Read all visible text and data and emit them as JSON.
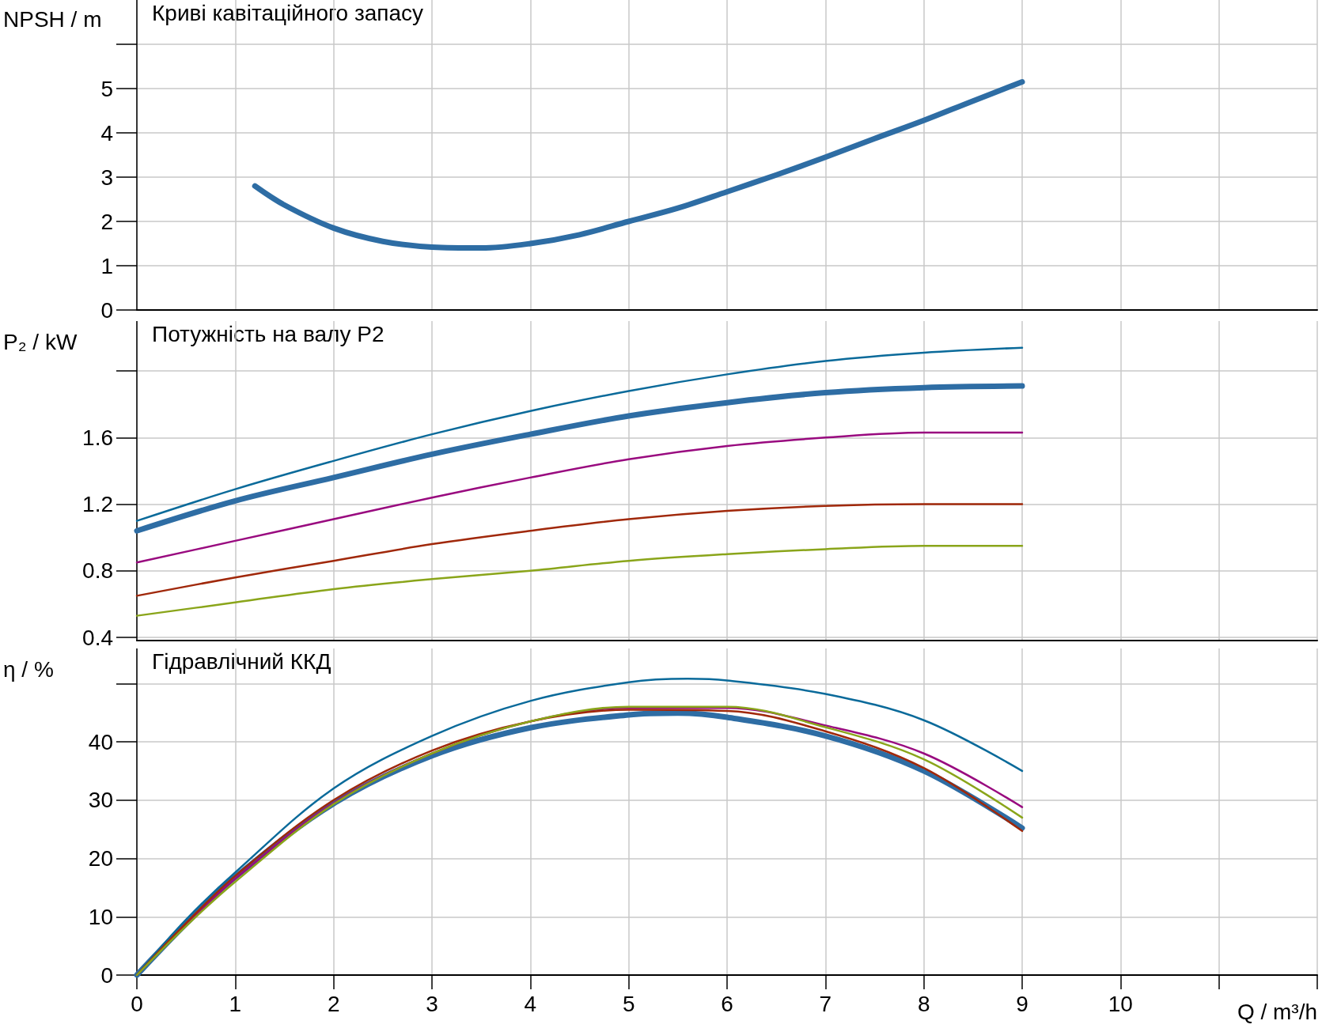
{
  "chart_data": [
    {
      "type": "line",
      "title": "Криві кавітаційного запасу",
      "ylabel": "NPSH / m",
      "xlim": [
        0,
        12
      ],
      "xticks": [
        0,
        1,
        2,
        3,
        4,
        5,
        6,
        7,
        8,
        9,
        10,
        11,
        12
      ],
      "ylim": [
        0,
        7
      ],
      "yticks": [
        0,
        1,
        2,
        3,
        4,
        5,
        {
          "value": 6,
          "label": null
        }
      ],
      "grid": true,
      "tick_labels": "y",
      "series": [
        {
          "color": "#2e6da4",
          "x": [
            1.2,
            1.5,
            2,
            2.5,
            3,
            3.5,
            4,
            4.5,
            5,
            5.5,
            6,
            6.5,
            7,
            7.5,
            8,
            8.5,
            9
          ],
          "values": [
            2.8,
            2.37,
            1.85,
            1.55,
            1.42,
            1.4,
            1.5,
            1.7,
            2.0,
            2.3,
            2.67,
            3.05,
            3.45,
            3.87,
            4.28,
            4.72,
            5.15
          ]
        }
      ]
    },
    {
      "type": "line",
      "title": "Потужність на валу P2",
      "ylabel": "P₂ / kW",
      "xlim": [
        0,
        12
      ],
      "xticks": [
        0,
        1,
        2,
        3,
        4,
        5,
        6,
        7,
        8,
        9,
        10,
        11,
        12
      ],
      "ylim": [
        0.38,
        2.3
      ],
      "yticks": [
        0.4,
        0.8,
        1.2,
        1.6,
        {
          "value": 2.0,
          "label": null
        }
      ],
      "grid": true,
      "tick_labels": "y",
      "series": [
        {
          "color": "#2e6da4",
          "x": [
            0,
            1,
            2,
            3,
            4,
            5,
            6,
            7,
            8,
            9
          ],
          "values": [
            1.04,
            1.22,
            1.36,
            1.5,
            1.62,
            1.73,
            1.81,
            1.87,
            1.9,
            1.91
          ]
        },
        {
          "color": "#0a6a9a",
          "x": [
            0,
            1,
            2,
            3,
            4,
            5,
            6,
            7,
            8,
            9
          ],
          "values": [
            1.1,
            1.29,
            1.46,
            1.62,
            1.76,
            1.88,
            1.98,
            2.06,
            2.11,
            2.14
          ]
        },
        {
          "color": "#990a7f",
          "x": [
            0,
            1,
            2,
            3,
            4,
            5,
            6,
            7,
            8,
            9
          ],
          "values": [
            0.85,
            0.98,
            1.11,
            1.24,
            1.36,
            1.47,
            1.55,
            1.6,
            1.63,
            1.63
          ]
        },
        {
          "color": "#a0280a",
          "x": [
            0,
            1,
            2,
            3,
            4,
            5,
            6,
            7,
            8,
            9
          ],
          "values": [
            0.65,
            0.76,
            0.86,
            0.96,
            1.04,
            1.11,
            1.16,
            1.19,
            1.2,
            1.2
          ]
        },
        {
          "color": "#8aa51a",
          "x": [
            0,
            1,
            2,
            3,
            4,
            5,
            6,
            7,
            8,
            9
          ],
          "values": [
            0.53,
            0.61,
            0.69,
            0.75,
            0.8,
            0.86,
            0.9,
            0.93,
            0.95,
            0.95
          ]
        }
      ]
    },
    {
      "type": "line",
      "title": "Гідравлічний ККД",
      "ylabel": "η / %",
      "xlabel": "Q / m³/h",
      "xlim": [
        0,
        12
      ],
      "xticks": [
        0,
        1,
        2,
        3,
        4,
        5,
        6,
        7,
        8,
        9,
        10,
        {
          "value": 11,
          "label": null
        },
        {
          "value": 12,
          "label": null
        }
      ],
      "ylim": [
        0,
        56
      ],
      "yticks": [
        0,
        10,
        20,
        30,
        40,
        {
          "value": 50,
          "label": null
        }
      ],
      "grid": true,
      "series": [
        {
          "color": "#2e6da4",
          "x": [
            0,
            0.5,
            1,
            2,
            3,
            4,
            5,
            5.5,
            6,
            7,
            8,
            9
          ],
          "values": [
            0,
            8.8,
            16.8,
            29.4,
            37.6,
            42.4,
            44.6,
            44.9,
            44.2,
            41,
            35,
            25.2
          ]
        },
        {
          "color": "#0a6a9a",
          "x": [
            0,
            0.5,
            1,
            2,
            3,
            4,
            5,
            5.6,
            6,
            7,
            8,
            9
          ],
          "values": [
            0,
            9.5,
            17.6,
            32,
            41,
            47,
            50.2,
            50.8,
            50.5,
            48.2,
            43.7,
            35
          ]
        },
        {
          "color": "#990a7f",
          "x": [
            0,
            0.5,
            1,
            2,
            3,
            4,
            5,
            6,
            7,
            8,
            9
          ],
          "values": [
            0,
            8.6,
            16.5,
            29.5,
            38,
            43.5,
            45.8,
            45.8,
            42.8,
            38,
            28.8
          ]
        },
        {
          "color": "#a0280a",
          "x": [
            0,
            0.5,
            1,
            2,
            3,
            4,
            5,
            6,
            7,
            8,
            9
          ],
          "values": [
            0,
            8.9,
            17,
            30,
            38.5,
            43.5,
            45.5,
            45.3,
            41.8,
            35.5,
            24.7
          ]
        },
        {
          "color": "#8aa51a",
          "x": [
            0,
            0.5,
            1,
            2,
            3,
            4,
            5,
            6,
            7,
            8,
            9
          ],
          "values": [
            0,
            8.4,
            16,
            29.3,
            38,
            43.5,
            46,
            46,
            42.5,
            37,
            27
          ]
        }
      ]
    }
  ]
}
